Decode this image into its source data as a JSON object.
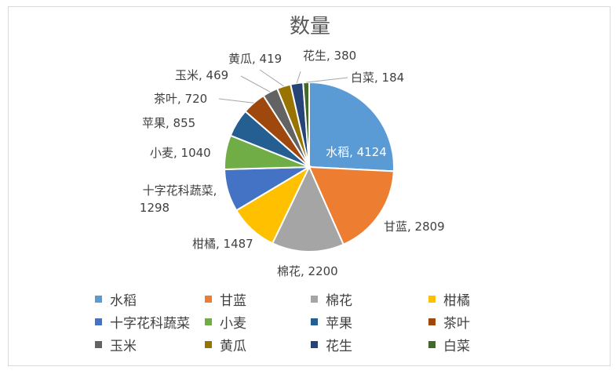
{
  "chart_data": {
    "type": "pie",
    "title": "数量",
    "categories": [
      "水稻",
      "甘蓝",
      "棉花",
      "柑橘",
      "十字花科蔬菜",
      "小麦",
      "苹果",
      "茶叶",
      "玉米",
      "黄瓜",
      "花生",
      "白菜"
    ],
    "values": [
      4124,
      2809,
      2200,
      1487,
      1298,
      1040,
      855,
      720,
      469,
      419,
      380,
      184
    ],
    "colors": [
      "#5b9bd5",
      "#ed7d31",
      "#a5a5a5",
      "#ffc000",
      "#4472c4",
      "#70ad47",
      "#255e91",
      "#9e480e",
      "#636363",
      "#997300",
      "#264478",
      "#43682b"
    ],
    "data_labels": [
      "水稻, 4124",
      "甘蓝, 2809",
      "棉花, 2200",
      "柑橘, 1487",
      "十字花科蔬菜, 1298",
      "小麦, 1040",
      "苹果, 855",
      "茶叶, 720",
      "玉米, 469",
      "黄瓜, 419",
      "花生, 380",
      "白菜, 184"
    ],
    "legend_position": "bottom"
  }
}
